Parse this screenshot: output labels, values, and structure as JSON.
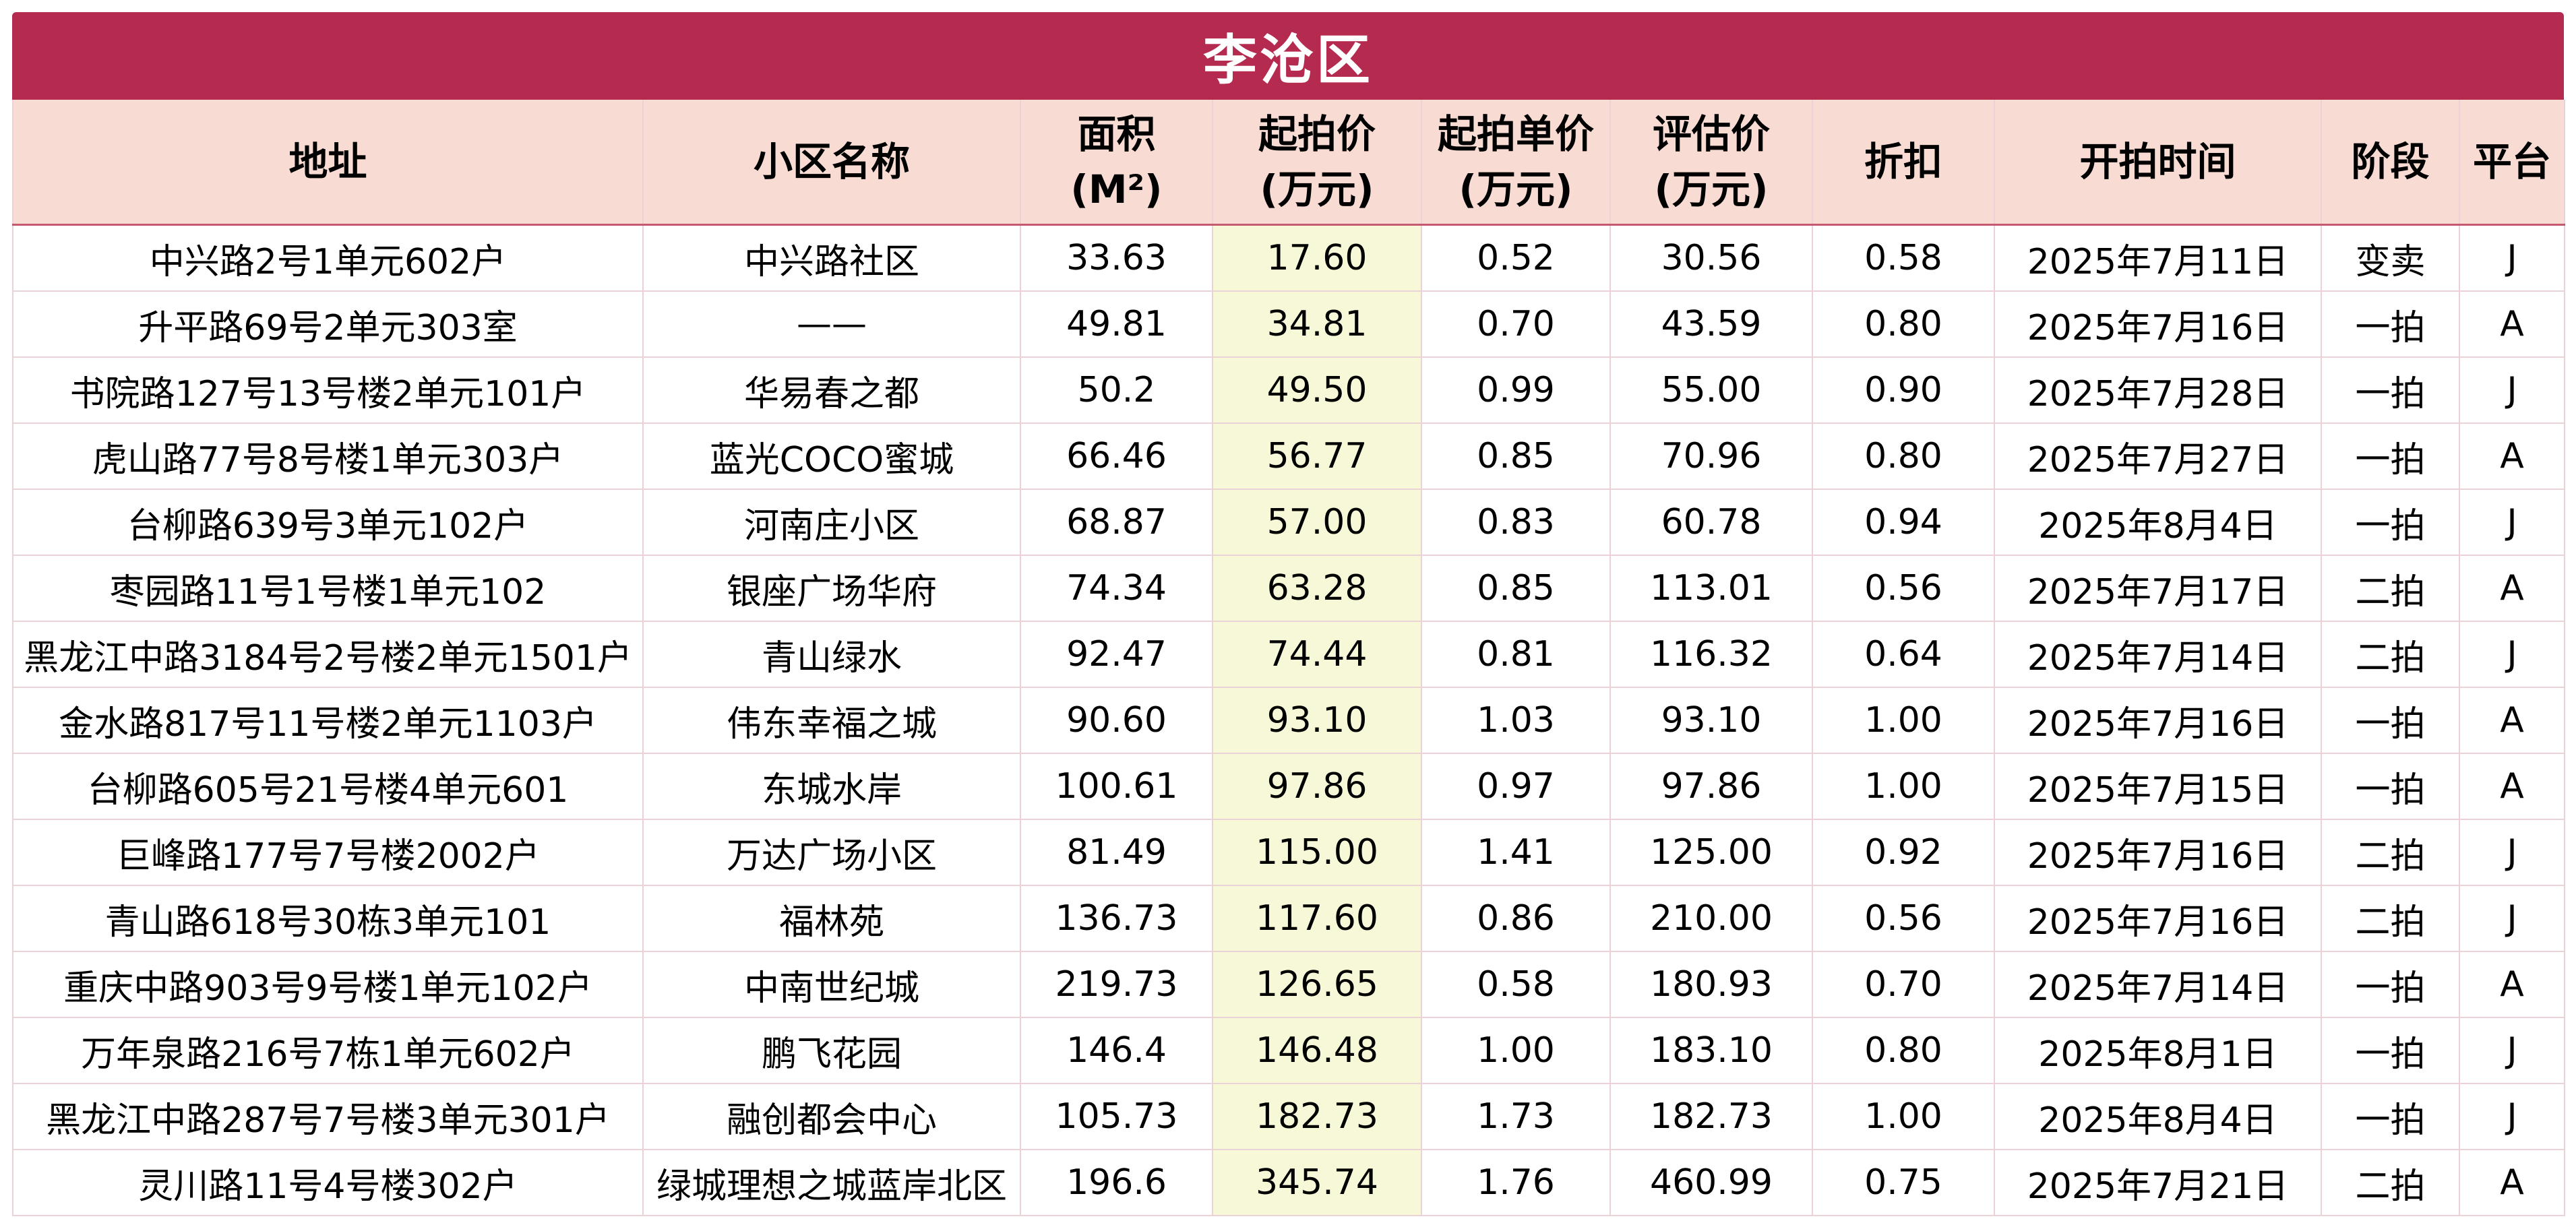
{
  "title": "李沧区",
  "colors": {
    "title_bg": "#b52b50",
    "header_bg": "#f8dcd4",
    "highlight_col_bg": "#f7f8d8"
  },
  "headers": {
    "address": "地址",
    "community": "小区名称",
    "area_l1": "面积",
    "area_l2": "(M²)",
    "start_price_l1": "起拍价",
    "start_price_l2": "(万元)",
    "unit_price_l1": "起拍单价",
    "unit_price_l2": "(万元)",
    "appraisal_l1": "评估价",
    "appraisal_l2": "(万元)",
    "discount": "折扣",
    "start_time": "开拍时间",
    "stage": "阶段",
    "platform": "平台"
  },
  "rows": [
    {
      "address": "中兴路2号1单元602户",
      "community": "中兴路社区",
      "area": "33.63",
      "start_price": "17.60",
      "unit_price": "0.52",
      "appraisal": "30.56",
      "discount": "0.58",
      "start_time": "2025年7月11日",
      "stage": "变卖",
      "platform": "J"
    },
    {
      "address": "升平路69号2单元303室",
      "community": "——",
      "area": "49.81",
      "start_price": "34.81",
      "unit_price": "0.70",
      "appraisal": "43.59",
      "discount": "0.80",
      "start_time": "2025年7月16日",
      "stage": "一拍",
      "platform": "A"
    },
    {
      "address": "书院路127号13号楼2单元101户",
      "community": "华易春之都",
      "area": "50.2",
      "start_price": "49.50",
      "unit_price": "0.99",
      "appraisal": "55.00",
      "discount": "0.90",
      "start_time": "2025年7月28日",
      "stage": "一拍",
      "platform": "J"
    },
    {
      "address": "虎山路77号8号楼1单元303户",
      "community": "蓝光COCO蜜城",
      "area": "66.46",
      "start_price": "56.77",
      "unit_price": "0.85",
      "appraisal": "70.96",
      "discount": "0.80",
      "start_time": "2025年7月27日",
      "stage": "一拍",
      "platform": "A"
    },
    {
      "address": "台柳路639号3单元102户",
      "community": "河南庄小区",
      "area": "68.87",
      "start_price": "57.00",
      "unit_price": "0.83",
      "appraisal": "60.78",
      "discount": "0.94",
      "start_time": "2025年8月4日",
      "stage": "一拍",
      "platform": "J"
    },
    {
      "address": "枣园路11号1号楼1单元102",
      "community": "银座广场华府",
      "area": "74.34",
      "start_price": "63.28",
      "unit_price": "0.85",
      "appraisal": "113.01",
      "discount": "0.56",
      "start_time": "2025年7月17日",
      "stage": "二拍",
      "platform": "A"
    },
    {
      "address": "黑龙江中路3184号2号楼2单元1501户",
      "community": "青山绿水",
      "area": "92.47",
      "start_price": "74.44",
      "unit_price": "0.81",
      "appraisal": "116.32",
      "discount": "0.64",
      "start_time": "2025年7月14日",
      "stage": "二拍",
      "platform": "J"
    },
    {
      "address": "金水路817号11号楼2单元1103户",
      "community": "伟东幸福之城",
      "area": "90.60",
      "start_price": "93.10",
      "unit_price": "1.03",
      "appraisal": "93.10",
      "discount": "1.00",
      "start_time": "2025年7月16日",
      "stage": "一拍",
      "platform": "A"
    },
    {
      "address": "台柳路605号21号楼4单元601",
      "community": "东城水岸",
      "area": "100.61",
      "start_price": "97.86",
      "unit_price": "0.97",
      "appraisal": "97.86",
      "discount": "1.00",
      "start_time": "2025年7月15日",
      "stage": "一拍",
      "platform": "A"
    },
    {
      "address": "巨峰路177号7号楼2002户",
      "community": "万达广场小区",
      "area": "81.49",
      "start_price": "115.00",
      "unit_price": "1.41",
      "appraisal": "125.00",
      "discount": "0.92",
      "start_time": "2025年7月16日",
      "stage": "二拍",
      "platform": "J"
    },
    {
      "address": "青山路618号30栋3单元101",
      "community": "福林苑",
      "area": "136.73",
      "start_price": "117.60",
      "unit_price": "0.86",
      "appraisal": "210.00",
      "discount": "0.56",
      "start_time": "2025年7月16日",
      "stage": "二拍",
      "platform": "J"
    },
    {
      "address": "重庆中路903号9号楼1单元102户",
      "community": "中南世纪城",
      "area": "219.73",
      "start_price": "126.65",
      "unit_price": "0.58",
      "appraisal": "180.93",
      "discount": "0.70",
      "start_time": "2025年7月14日",
      "stage": "一拍",
      "platform": "A"
    },
    {
      "address": "万年泉路216号7栋1单元602户",
      "community": "鹏飞花园",
      "area": "146.4",
      "start_price": "146.48",
      "unit_price": "1.00",
      "appraisal": "183.10",
      "discount": "0.80",
      "start_time": "2025年8月1日",
      "stage": "一拍",
      "platform": "J"
    },
    {
      "address": "黑龙江中路287号7号楼3单元301户",
      "community": "融创都会中心",
      "area": "105.73",
      "start_price": "182.73",
      "unit_price": "1.73",
      "appraisal": "182.73",
      "discount": "1.00",
      "start_time": "2025年8月4日",
      "stage": "一拍",
      "platform": "J"
    },
    {
      "address": "灵川路11号4号楼302户",
      "community": "绿城理想之城蓝岸北区",
      "area": "196.6",
      "start_price": "345.74",
      "unit_price": "1.76",
      "appraisal": "460.99",
      "discount": "0.75",
      "start_time": "2025年7月21日",
      "stage": "二拍",
      "platform": "A"
    }
  ]
}
